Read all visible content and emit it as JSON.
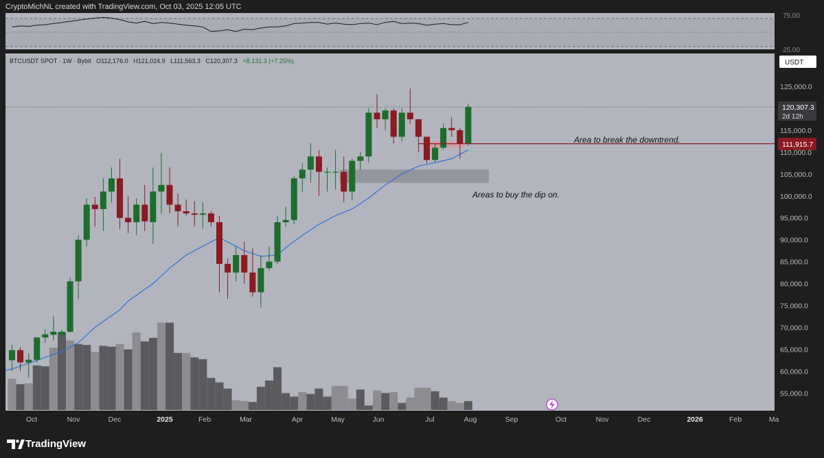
{
  "header": {
    "credit": "CryptoMichNL created with TradingView.com, Oct 03, 2025 12:05 UTC"
  },
  "symbol_line": {
    "name": "BTCUSDT SPOT · 1W · Bybit",
    "open": "O112,176.0",
    "high": "H121,024.9",
    "low": "L111,563.3",
    "close": "C120,307.3",
    "change": "+8,131.3 (+7.25%)"
  },
  "currency_button": "USDT",
  "price_tag": {
    "price": "120,307.3",
    "countdown": "2d 12h"
  },
  "level_tag": "111,915.7",
  "annotations": {
    "breakout": "Area to break the downtrend.",
    "dip": "Areas to buy the dip on."
  },
  "footer": {
    "brand": "TradingView"
  },
  "colors": {
    "up": "#1c6d2c",
    "down": "#8b1a22",
    "ma": "#2f6fd6",
    "panel_bg": "#b2b5be",
    "frame": "#1e1e1e",
    "volume_dark": "#5b5b5f",
    "volume_light": "#8c8c91",
    "level_line": "#8b1a22"
  },
  "icons": {
    "currency_menu": "chevron",
    "lightning": "lightning-icon",
    "logo": "tradingview-logo"
  },
  "chart_data": {
    "type": "candlestick",
    "title": "BTCUSDT SPOT · 1W · Bybit",
    "y_axis_labels": [
      "125,000.0",
      "120,000.0",
      "115,000.0",
      "110,000.0",
      "105,000.0",
      "100,000.0",
      "95,000.0",
      "90,000.0",
      "85,000.0",
      "80,000.0",
      "75,000.0",
      "70,000.0",
      "65,000.0",
      "60,000.0",
      "55,000.0"
    ],
    "x_axis_labels": [
      "Oct",
      "Nov",
      "Dec",
      "2025",
      "Feb",
      "Mar",
      "Apr",
      "May",
      "Jun",
      "Jul",
      "Aug",
      "Sep",
      "Oct",
      "Nov",
      "Dec",
      "2026",
      "Feb",
      "Ma"
    ],
    "rsi_labels": [
      "75.00",
      "25.00"
    ],
    "ylim": [
      51000,
      130000
    ],
    "candles": [
      {
        "o": 62500,
        "h": 66000,
        "l": 60000,
        "c": 64800
      },
      {
        "o": 64800,
        "h": 65500,
        "l": 60000,
        "c": 62000
      },
      {
        "o": 62000,
        "h": 64000,
        "l": 58500,
        "c": 62600
      },
      {
        "o": 62600,
        "h": 67500,
        "l": 62000,
        "c": 67700
      },
      {
        "o": 67700,
        "h": 69500,
        "l": 66500,
        "c": 68400
      },
      {
        "o": 68300,
        "h": 72500,
        "l": 67000,
        "c": 69000
      },
      {
        "o": 68300,
        "h": 69500,
        "l": 67500,
        "c": 69000
      },
      {
        "o": 69000,
        "h": 81500,
        "l": 68800,
        "c": 80500
      },
      {
        "o": 80500,
        "h": 91000,
        "l": 76500,
        "c": 90000
      },
      {
        "o": 90000,
        "h": 99500,
        "l": 88500,
        "c": 98000
      },
      {
        "o": 98000,
        "h": 99800,
        "l": 93000,
        "c": 97000
      },
      {
        "o": 97000,
        "h": 104000,
        "l": 92000,
        "c": 101000
      },
      {
        "o": 101000,
        "h": 106500,
        "l": 98500,
        "c": 104000
      },
      {
        "o": 104000,
        "h": 108500,
        "l": 92500,
        "c": 95000
      },
      {
        "o": 95000,
        "h": 100000,
        "l": 91500,
        "c": 94000
      },
      {
        "o": 94000,
        "h": 99500,
        "l": 91000,
        "c": 98000
      },
      {
        "o": 98000,
        "h": 102500,
        "l": 92000,
        "c": 94200
      },
      {
        "o": 94000,
        "h": 106500,
        "l": 89000,
        "c": 101000
      },
      {
        "o": 101000,
        "h": 109800,
        "l": 96000,
        "c": 102500
      },
      {
        "o": 102500,
        "h": 106500,
        "l": 96000,
        "c": 98000
      },
      {
        "o": 98000,
        "h": 100500,
        "l": 93000,
        "c": 96500
      },
      {
        "o": 96500,
        "h": 99200,
        "l": 95500,
        "c": 96000
      },
      {
        "o": 96000,
        "h": 98800,
        "l": 93000,
        "c": 95700
      },
      {
        "o": 95700,
        "h": 98500,
        "l": 92500,
        "c": 96000
      },
      {
        "o": 96000,
        "h": 96500,
        "l": 93000,
        "c": 94000
      },
      {
        "o": 94000,
        "h": 95500,
        "l": 78000,
        "c": 84500
      },
      {
        "o": 84500,
        "h": 85700,
        "l": 76500,
        "c": 82500
      },
      {
        "o": 82500,
        "h": 88500,
        "l": 80500,
        "c": 86500
      },
      {
        "o": 86500,
        "h": 89500,
        "l": 80000,
        "c": 82500
      },
      {
        "o": 82500,
        "h": 88000,
        "l": 77000,
        "c": 78000
      },
      {
        "o": 78000,
        "h": 86500,
        "l": 74500,
        "c": 83500
      },
      {
        "o": 83500,
        "h": 88500,
        "l": 83000,
        "c": 85000
      },
      {
        "o": 85000,
        "h": 95500,
        "l": 84500,
        "c": 94000
      },
      {
        "o": 94000,
        "h": 97500,
        "l": 93000,
        "c": 94500
      },
      {
        "o": 94500,
        "h": 104500,
        "l": 93500,
        "c": 104000
      },
      {
        "o": 104000,
        "h": 107500,
        "l": 101000,
        "c": 106000
      },
      {
        "o": 106000,
        "h": 112000,
        "l": 103000,
        "c": 109000
      },
      {
        "o": 109000,
        "h": 110500,
        "l": 100000,
        "c": 105500
      },
      {
        "o": 105500,
        "h": 106500,
        "l": 101000,
        "c": 105500
      },
      {
        "o": 105500,
        "h": 110500,
        "l": 101500,
        "c": 105500
      },
      {
        "o": 105500,
        "h": 109000,
        "l": 98500,
        "c": 101000
      },
      {
        "o": 101000,
        "h": 108500,
        "l": 99000,
        "c": 108000
      },
      {
        "o": 108000,
        "h": 110000,
        "l": 106000,
        "c": 109000
      },
      {
        "o": 109000,
        "h": 120000,
        "l": 107500,
        "c": 119000
      },
      {
        "o": 119000,
        "h": 123200,
        "l": 115500,
        "c": 117500
      },
      {
        "o": 117500,
        "h": 120000,
        "l": 115000,
        "c": 119500
      },
      {
        "o": 119500,
        "h": 120000,
        "l": 112000,
        "c": 113500
      },
      {
        "o": 113500,
        "h": 120000,
        "l": 112500,
        "c": 119000
      },
      {
        "o": 119000,
        "h": 124500,
        "l": 116500,
        "c": 117500
      },
      {
        "o": 117500,
        "h": 117500,
        "l": 110000,
        "c": 113500
      },
      {
        "o": 113500,
        "h": 113500,
        "l": 107500,
        "c": 108200
      },
      {
        "o": 108200,
        "h": 112000,
        "l": 107500,
        "c": 111000
      },
      {
        "o": 111000,
        "h": 116500,
        "l": 110500,
        "c": 115500
      },
      {
        "o": 115500,
        "h": 118000,
        "l": 113500,
        "c": 115000
      },
      {
        "o": 115000,
        "h": 115500,
        "l": 108500,
        "c": 112000
      },
      {
        "o": 112000,
        "h": 121000,
        "l": 111500,
        "c": 120307
      }
    ],
    "volume_relative": [
      0.35,
      0.29,
      0.3,
      0.5,
      0.49,
      0.7,
      0.87,
      0.78,
      0.74,
      0.73,
      0.65,
      0.72,
      0.71,
      0.74,
      0.68,
      0.87,
      0.77,
      0.81,
      0.98,
      0.98,
      0.64,
      0.64,
      0.59,
      0.57,
      0.36,
      0.31,
      0.24,
      0.11,
      0.1,
      0.09,
      0.26,
      0.33,
      0.48,
      0.19,
      0.15,
      0.2,
      0.18,
      0.24,
      0.15,
      0.27,
      0.27,
      0.13,
      0.23,
      0.05,
      0.22,
      0.19,
      0.2,
      0.08,
      0.14,
      0.25,
      0.25,
      0.21,
      0.14,
      0.1,
      0.08,
      0.1
    ],
    "volume_light": [
      true,
      false,
      true,
      false,
      false,
      true,
      false,
      true,
      false,
      false,
      true,
      false,
      false,
      true,
      false,
      true,
      false,
      false,
      true,
      false,
      false,
      true,
      false,
      false,
      false,
      false,
      false,
      true,
      true,
      false,
      false,
      false,
      false,
      false,
      false,
      true,
      false,
      false,
      false,
      true,
      true,
      true,
      false,
      false,
      true,
      false,
      true,
      false,
      true,
      true,
      true,
      false,
      false,
      true,
      true,
      false
    ],
    "ma_line": [
      {
        "i": 0,
        "v": 60500
      },
      {
        "i": 3,
        "v": 62500
      },
      {
        "i": 6,
        "v": 64500
      },
      {
        "i": 8,
        "v": 66500
      },
      {
        "i": 10,
        "v": 70000
      },
      {
        "i": 13,
        "v": 74000
      },
      {
        "i": 14,
        "v": 76000
      },
      {
        "i": 17,
        "v": 80000
      },
      {
        "i": 19,
        "v": 83500
      },
      {
        "i": 21,
        "v": 86500
      },
      {
        "i": 23,
        "v": 88500
      },
      {
        "i": 25,
        "v": 90500
      },
      {
        "i": 26,
        "v": 89500
      },
      {
        "i": 28,
        "v": 87500
      },
      {
        "i": 30,
        "v": 86200
      },
      {
        "i": 32,
        "v": 86500
      },
      {
        "i": 33,
        "v": 88200
      },
      {
        "i": 35,
        "v": 91000
      },
      {
        "i": 37,
        "v": 93500
      },
      {
        "i": 39,
        "v": 95500
      },
      {
        "i": 41,
        "v": 97000
      },
      {
        "i": 43,
        "v": 99500
      },
      {
        "i": 45,
        "v": 102500
      },
      {
        "i": 47,
        "v": 105000
      },
      {
        "i": 49,
        "v": 106800
      },
      {
        "i": 51,
        "v": 107600
      },
      {
        "i": 53,
        "v": 108500
      },
      {
        "i": 55,
        "v": 110500
      }
    ],
    "rsi_values": [
      60,
      62,
      61,
      63,
      64,
      66,
      68,
      70,
      72,
      74,
      76,
      77,
      76,
      73,
      69,
      67,
      70,
      66,
      68,
      67,
      65,
      63,
      62,
      60,
      52,
      53,
      55,
      52,
      56,
      55,
      58,
      60,
      60,
      62,
      66,
      67,
      68,
      68,
      65,
      67,
      65,
      64,
      66,
      67,
      64,
      68,
      70,
      66,
      67,
      66,
      63,
      65,
      66,
      64,
      64,
      68
    ],
    "zones": [
      {
        "name": "downtrend-break",
        "from_index": 50,
        "to_index": 54,
        "low": 111000,
        "high": 112500
      },
      {
        "name": "buy-the-dip",
        "from_index": 40,
        "to_index": 57,
        "low": 103000,
        "high": 106000
      }
    ],
    "levels": {
      "current_price": 120307.3,
      "break_level": 111915.7
    }
  }
}
